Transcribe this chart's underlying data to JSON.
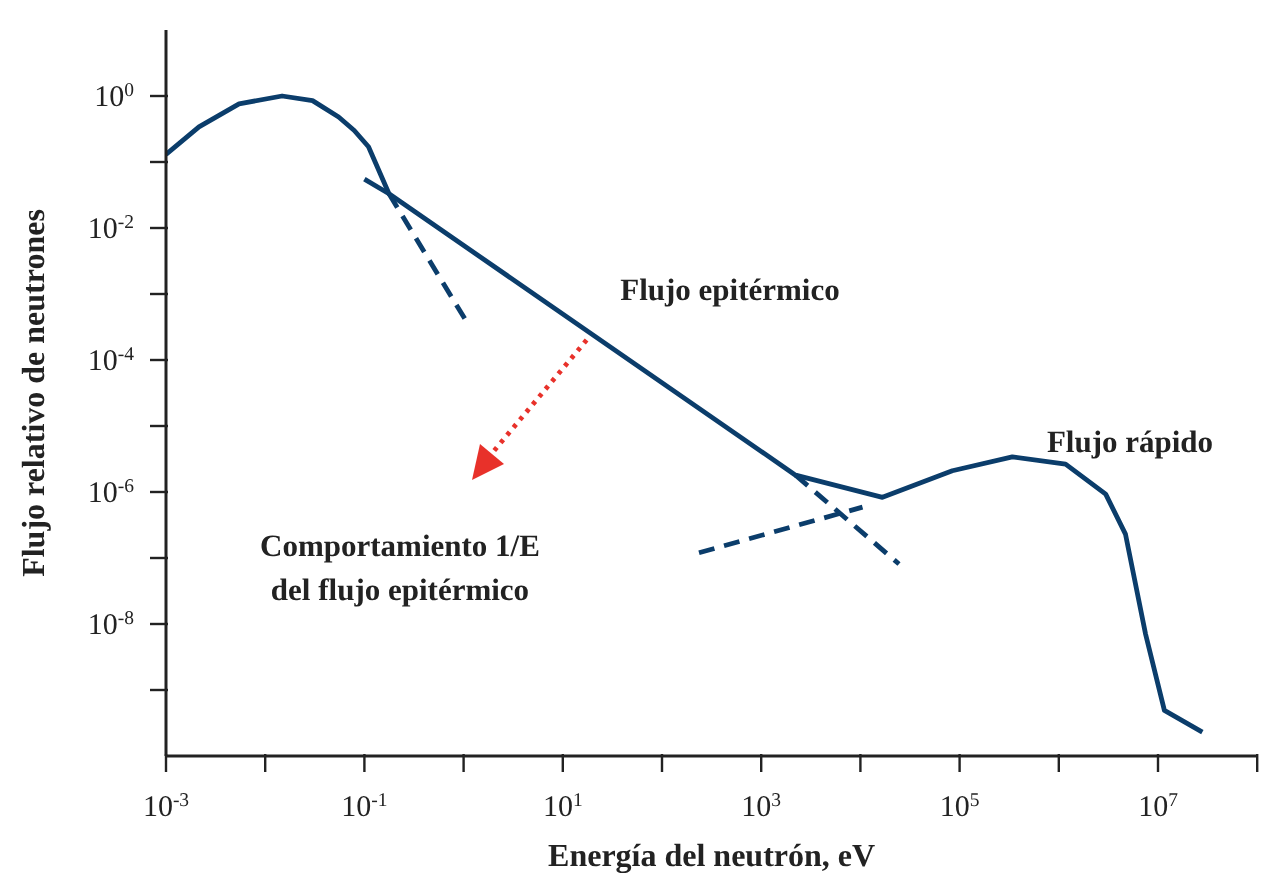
{
  "chart_data": {
    "type": "line",
    "xlabel": "Energía del neutrón, eV",
    "ylabel": "Flujo relativo de neutrones",
    "log": "xy",
    "marker": "none",
    "xlim": [
      0.001,
      100000000
    ],
    "ylim": [
      1e-10,
      10
    ],
    "xticks": [
      {
        "value": 0.001,
        "label": "10$^{-3}$"
      },
      {
        "value": 0.01,
        "label": null
      },
      {
        "value": 0.1,
        "label": "10$^{-1}$"
      },
      {
        "value": 1,
        "label": null
      },
      {
        "value": 10,
        "label": "10$^{1}$"
      },
      {
        "value": 100,
        "label": null
      },
      {
        "value": 1000,
        "label": "10$^{3}$"
      },
      {
        "value": 10000,
        "label": null
      },
      {
        "value": 100000,
        "label": "10$^{5}$"
      },
      {
        "value": 1000000,
        "label": null
      },
      {
        "value": 10000000,
        "label": "10$^{7}$"
      },
      {
        "value": 100000000,
        "label": null
      }
    ],
    "yticks": [
      {
        "value": 1e-09,
        "label": null
      },
      {
        "value": 1e-08,
        "label": "10$^{-8}$"
      },
      {
        "value": 1e-07,
        "label": null
      },
      {
        "value": 1e-06,
        "label": "10$^{-6}$"
      },
      {
        "value": 1e-05,
        "label": null
      },
      {
        "value": 0.0001,
        "label": "10$^{-4}$"
      },
      {
        "value": 0.001,
        "label": null
      },
      {
        "value": 0.01,
        "label": "10$^{-2}$"
      },
      {
        "value": 0.1,
        "label": null
      },
      {
        "value": 1,
        "label": "10$^{0}$"
      }
    ],
    "series": [
      {
        "color": "#0b3d6b",
        "line_style": "solid",
        "x": [
          0.001,
          0.00215,
          0.00545,
          0.0148,
          0.03,
          0.055,
          0.079,
          0.11,
          0.177,
          2220,
          16700,
          84500,
          340000,
          1170000,
          2970000,
          4700000,
          7500000,
          11600000,
          28000000
        ],
        "values": [
          0.13,
          0.34,
          0.76,
          1.0,
          0.85,
          0.48,
          0.3,
          0.17,
          0.033,
          1.8e-06,
          8.3e-07,
          2.1e-06,
          3.4e-06,
          2.65e-06,
          9.3e-07,
          2.3e-07,
          7e-09,
          4.9e-10,
          2.3e-10
        ]
      },
      {
        "color": "#0b3d6b",
        "line_style": "solid",
        "x": [
          0.1,
          0.177
        ],
        "values": [
          0.055,
          0.033
        ]
      },
      {
        "color": "#0b3d6b",
        "line_style": "dashed",
        "x": [
          0.177,
          1.05
        ],
        "values": [
          0.033,
          0.0004
        ]
      },
      {
        "color": "#0b3d6b",
        "line_style": "dashed",
        "x": [
          2220,
          24500
        ],
        "values": [
          1.8e-06,
          8.1e-08
        ]
      },
      {
        "color": "#0b3d6b",
        "line_style": "dashed",
        "x": [
          236,
          10500
        ],
        "values": [
          1.2e-07,
          5.9e-07
        ]
      }
    ],
    "annotations": [
      "Flujo epitérmico",
      "Flujo rápido",
      "Comportamiento 1/E\ndel flujo epitérmico"
    ]
  }
}
